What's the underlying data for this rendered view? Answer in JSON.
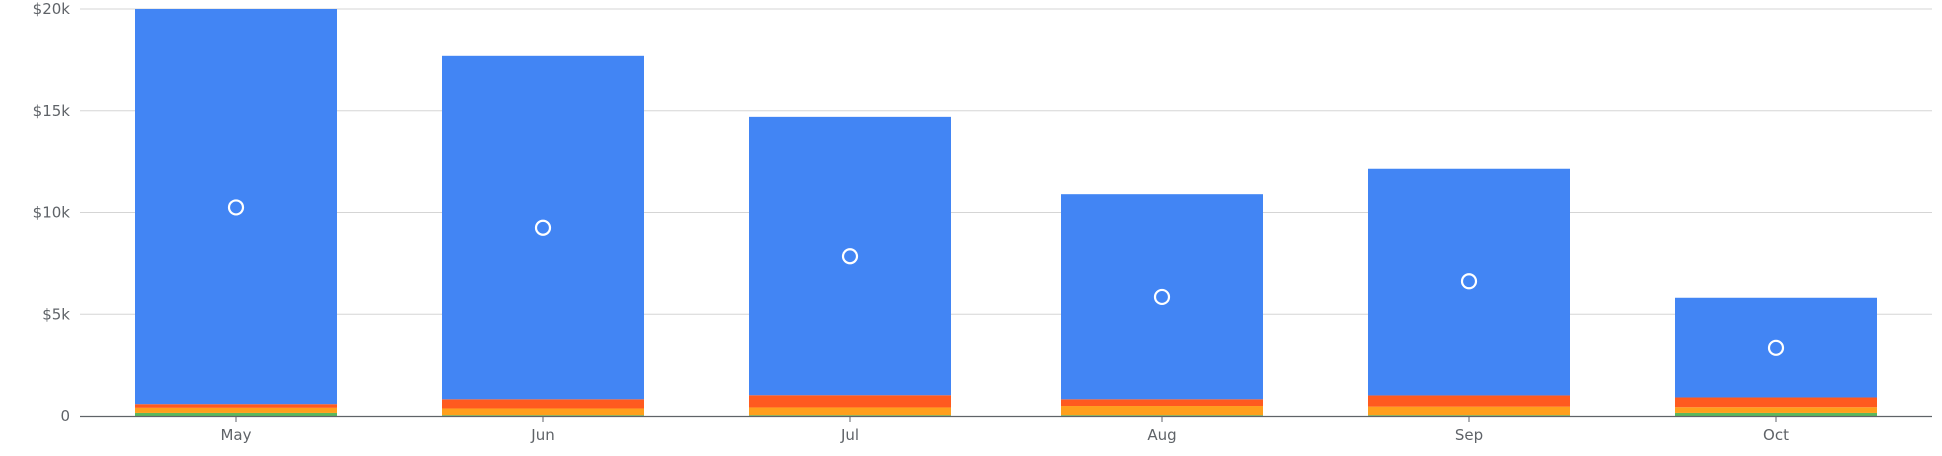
{
  "chart_data": {
    "type": "bar",
    "stacked": true,
    "categories": [
      "May",
      "Jun",
      "Jul",
      "Aug",
      "Sep",
      "Oct"
    ],
    "y_ticks": [
      {
        "value": 0,
        "label": "0"
      },
      {
        "value": 5000,
        "label": "$5k"
      },
      {
        "value": 10000,
        "label": "$10k"
      },
      {
        "value": 15000,
        "label": "$15k"
      },
      {
        "value": 20000,
        "label": "$20k"
      }
    ],
    "ylim": [
      0,
      20000
    ],
    "grid": true,
    "legend": "none",
    "series": [
      {
        "color": "#5cb85c",
        "values": [
          150,
          40,
          40,
          40,
          40,
          150
        ]
      },
      {
        "color": "#ff9f1c",
        "values": [
          250,
          330,
          380,
          450,
          420,
          280
        ]
      },
      {
        "color": "#ff5a1f",
        "values": [
          180,
          450,
          600,
          330,
          550,
          480
        ]
      },
      {
        "color": "#4285f4",
        "values": [
          19420,
          16880,
          13680,
          10080,
          11140,
          4900
        ]
      }
    ],
    "markers": {
      "style": "hollow-circle",
      "color": "#ffffff",
      "values": [
        10250,
        9250,
        7850,
        5850,
        6620,
        3350
      ]
    }
  }
}
